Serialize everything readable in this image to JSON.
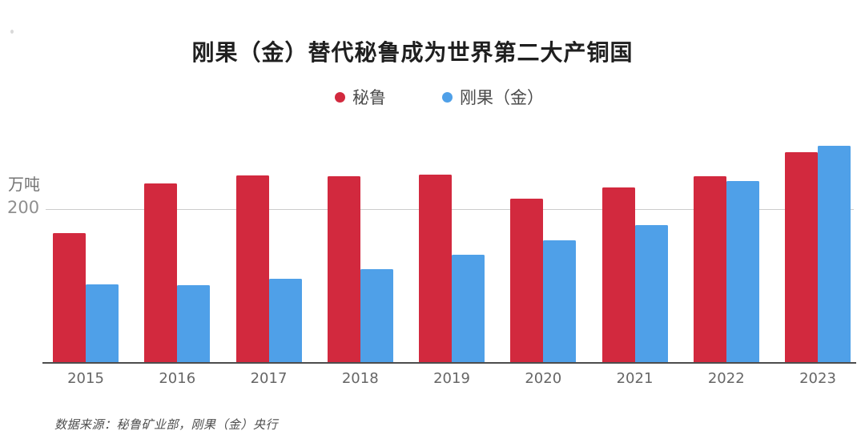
{
  "chart_data": {
    "type": "bar",
    "title": "刚果（金）替代秘鲁成为世界第二大产铜国",
    "unit_label": "万吨",
    "y_tick_label": "200",
    "gridline_value": 200,
    "ylim": [
      0,
      300
    ],
    "legend_position": "top-center",
    "grid": "single-horizontal-line",
    "categories": [
      "2015",
      "2016",
      "2017",
      "2018",
      "2019",
      "2020",
      "2021",
      "2022",
      "2023"
    ],
    "series": [
      {
        "name": "秘鲁",
        "color": "#d2293e",
        "values": [
          170,
          235,
          245,
          244,
          246,
          215,
          230,
          244,
          276
        ]
      },
      {
        "name": "刚果（金）",
        "color": "#4fa0e8",
        "values": [
          103,
          102,
          110,
          123,
          142,
          160,
          180,
          238,
          284
        ]
      }
    ],
    "source": "数据来源：秘鲁矿业部，刚果（金）央行"
  }
}
